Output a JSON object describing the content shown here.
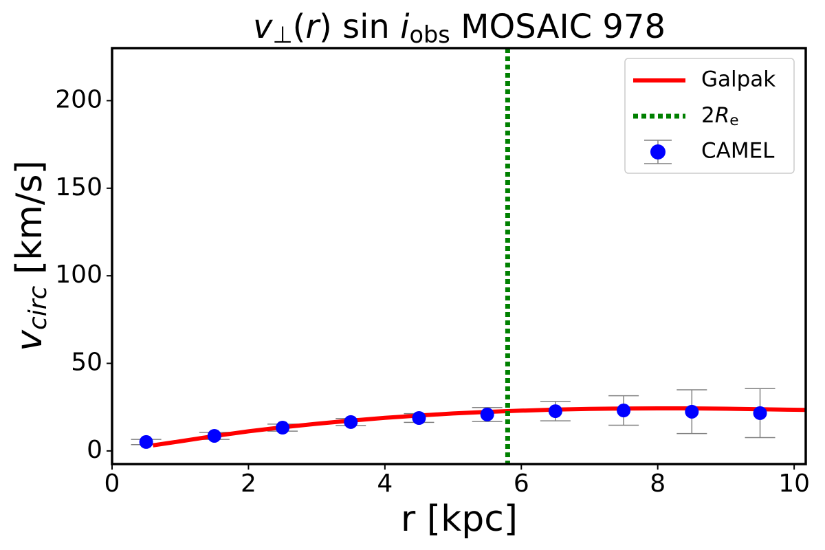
{
  "chart_data": {
    "type": "line",
    "title": [
      "v",
      "⊥",
      "(",
      "r",
      ") sin ",
      "i",
      "obs",
      " MOSAIC 978"
    ],
    "xlabel": "r [kpc]",
    "ylabel": [
      "v",
      "circ",
      " [km/s]"
    ],
    "xlim": [
      0,
      10.17
    ],
    "ylim": [
      -7.5,
      230
    ],
    "xticks": [
      0,
      2,
      4,
      6,
      8,
      10
    ],
    "yticks": [
      0,
      50,
      100,
      150,
      200
    ],
    "legend": "upper right",
    "series": [
      {
        "name": "Galpak",
        "color": "#ff0000",
        "x": [
          0.6,
          1,
          1.5,
          2,
          2.5,
          3,
          3.5,
          4,
          4.5,
          5,
          5.5,
          6,
          6.5,
          7,
          7.5,
          8,
          8.5,
          9,
          9.5,
          10,
          10.17
        ],
        "values": [
          3.2,
          5.5,
          8.5,
          11.2,
          13.5,
          15.5,
          17.3,
          18.9,
          20.2,
          21.4,
          22.3,
          23,
          23.6,
          24,
          24.2,
          24.3,
          24.3,
          24.1,
          23.8,
          23.5,
          23.4
        ]
      }
    ],
    "vline": {
      "name": [
        "2",
        "R",
        "e"
      ],
      "color": "#008000",
      "x": 5.8
    },
    "errorbar": {
      "name": "CAMEL",
      "color": "#0000ff",
      "ecolor": "#808080",
      "x": [
        0.5,
        1.5,
        2.5,
        3.5,
        4.5,
        5.5,
        6.5,
        7.5,
        8.5,
        9.5
      ],
      "values": [
        5.1,
        8.6,
        13.3,
        16.5,
        18.8,
        20.8,
        22.7,
        23.1,
        22.4,
        21.6
      ],
      "errors": [
        1.5,
        2,
        2,
        2,
        2.5,
        4,
        5.5,
        8.4,
        12.5,
        14
      ]
    }
  }
}
